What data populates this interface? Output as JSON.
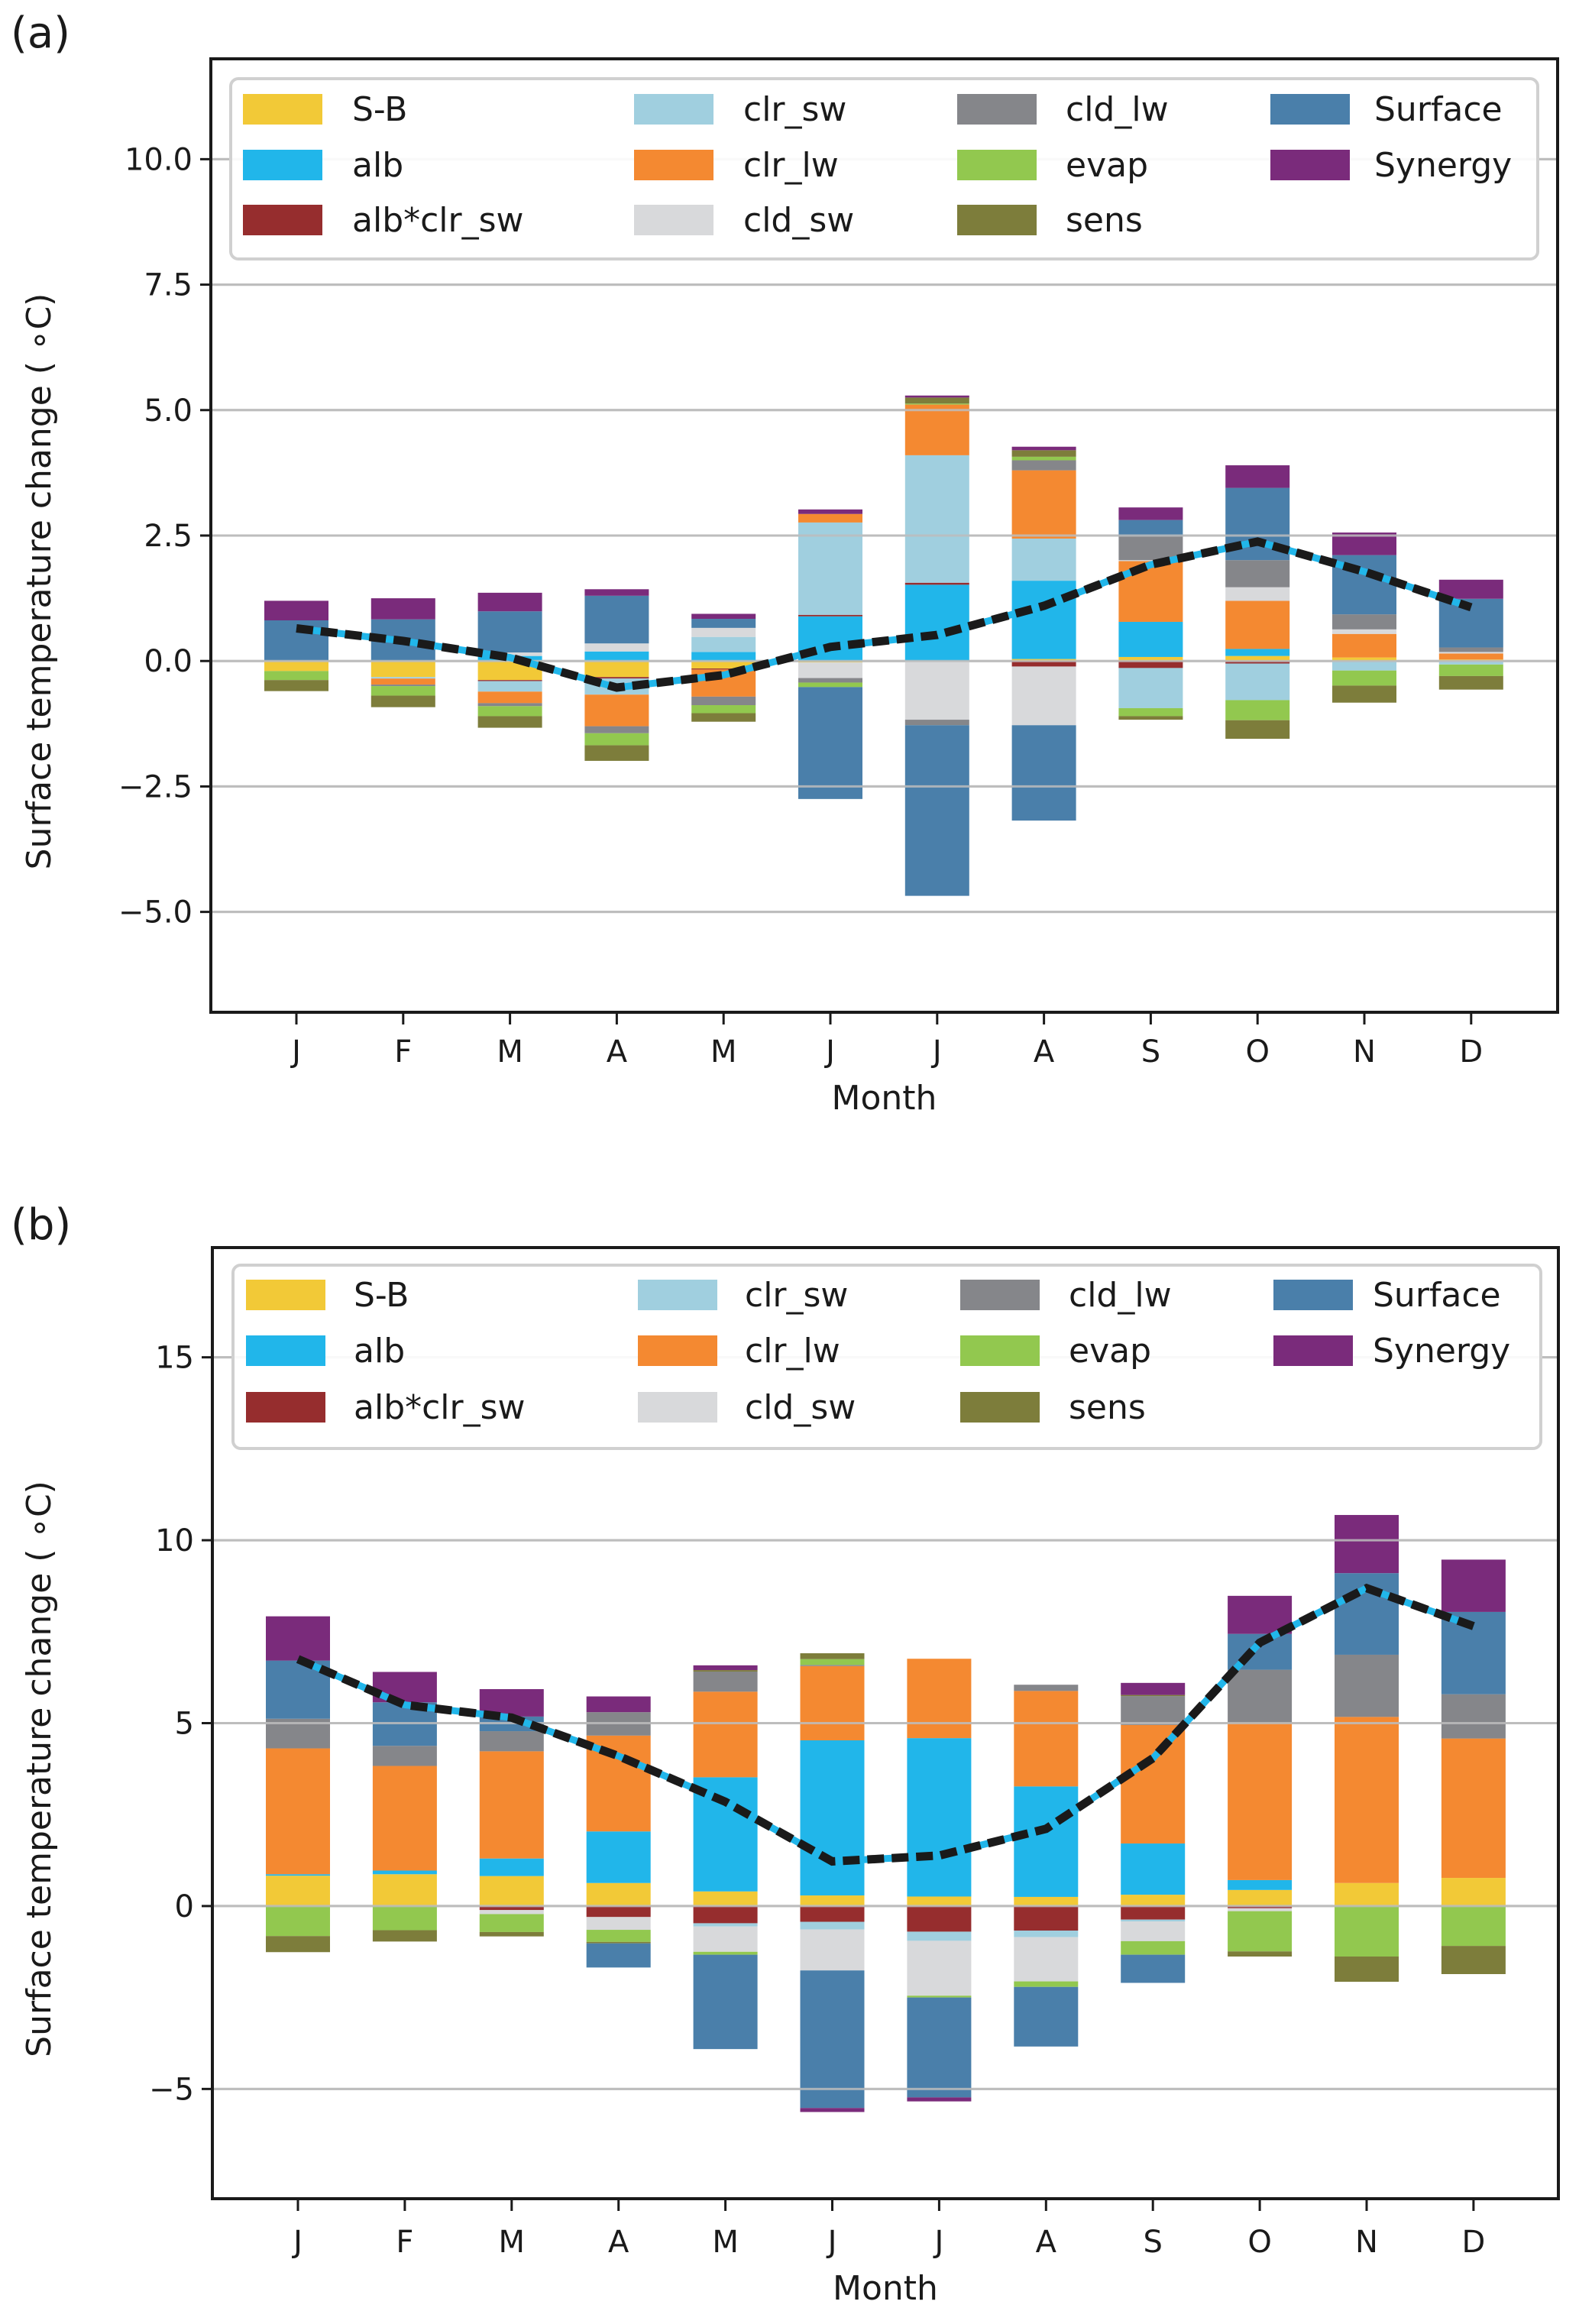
{
  "figure": {
    "panels_count": 2
  },
  "chart_data": [
    {
      "type": "bar",
      "stacked": true,
      "panel_label": "(a)",
      "title": "",
      "xlabel": "Month",
      "ylabel": "Surface temperature change ( ∘C)",
      "ylim": [
        -7.0,
        12.0
      ],
      "yticks": [
        -5.0,
        -2.5,
        0.0,
        2.5,
        5.0,
        7.5,
        10.0
      ],
      "ytick_labels": [
        "−5.0",
        "−2.5",
        "0.0",
        "2.5",
        "5.0",
        "7.5",
        "10.0"
      ],
      "grid": "horizontal",
      "legend_position": "top",
      "categories": [
        "J",
        "F",
        "M",
        "A",
        "M",
        "J",
        "J",
        "A",
        "S",
        "O",
        "N",
        "D"
      ],
      "series": [
        {
          "name": "S-B",
          "color": "#f2c937",
          "values": [
            -0.2,
            -0.32,
            -0.38,
            -0.32,
            -0.15,
            -0.03,
            0,
            0.04,
            0.08,
            0.1,
            0.07,
            0.03
          ]
        },
        {
          "name": "alb",
          "color": "#21b6ea",
          "values": [
            0,
            0,
            0.1,
            0.19,
            0.18,
            0.89,
            1.52,
            1.56,
            0.7,
            0.14,
            0,
            0
          ]
        },
        {
          "name": "alb*clr_sw",
          "color": "#962d2e",
          "values": [
            0,
            0,
            -0.02,
            -0.03,
            -0.02,
            0.03,
            0.04,
            -0.11,
            -0.14,
            -0.05,
            0,
            0
          ]
        },
        {
          "name": "clr_sw",
          "color": "#a0cfdf",
          "values": [
            0,
            -0.03,
            -0.21,
            -0.32,
            0.3,
            1.84,
            2.54,
            0.84,
            -0.8,
            -0.73,
            -0.19,
            -0.07
          ]
        },
        {
          "name": "clr_lw",
          "color": "#f48931",
          "values": [
            0,
            -0.12,
            -0.23,
            -0.63,
            -0.54,
            0.17,
            1.01,
            1.36,
            1.21,
            0.96,
            0.47,
            0.12
          ]
        },
        {
          "name": "cld_sw",
          "color": "#d8d9db",
          "values": [
            0,
            0,
            0.07,
            0.16,
            0.18,
            -0.31,
            -1.17,
            -1.17,
            0.02,
            0.27,
            0.09,
            0.03
          ]
        },
        {
          "name": "cld_lw",
          "color": "#85868a",
          "values": [
            0,
            -0.03,
            -0.06,
            -0.14,
            -0.17,
            -0.09,
            -0.11,
            0.2,
            0.48,
            0.54,
            0.3,
            0.09
          ]
        },
        {
          "name": "evap",
          "color": "#92c84f",
          "values": [
            -0.18,
            -0.19,
            -0.2,
            -0.24,
            -0.16,
            -0.09,
            0.02,
            0.07,
            -0.16,
            -0.4,
            -0.3,
            -0.23
          ]
        },
        {
          "name": "sens",
          "color": "#7d7d3b",
          "values": [
            -0.22,
            -0.23,
            -0.23,
            -0.31,
            -0.17,
            0,
            0.12,
            0.13,
            -0.07,
            -0.37,
            -0.34,
            -0.27
          ]
        },
        {
          "name": "Surface",
          "color": "#4a7faa",
          "values": [
            0.81,
            0.83,
            0.82,
            0.95,
            0.18,
            -2.23,
            -3.4,
            -1.9,
            0.32,
            1.44,
            1.18,
            0.97
          ]
        },
        {
          "name": "Synergy",
          "color": "#7a2b7b",
          "values": [
            0.39,
            0.42,
            0.37,
            0.13,
            0.1,
            0.09,
            0.04,
            0.07,
            0.25,
            0.45,
            0.45,
            0.38
          ]
        }
      ],
      "line": {
        "name": "Total",
        "style": "black dashes over cyan",
        "color_outer": "#1a1a1a",
        "color_inner": "#21b6ea",
        "values": [
          0.65,
          0.4,
          0.07,
          -0.53,
          -0.28,
          0.28,
          0.52,
          1.1,
          1.92,
          2.38,
          1.78,
          1.07
        ]
      }
    },
    {
      "type": "bar",
      "stacked": true,
      "panel_label": "(b)",
      "title": "",
      "xlabel": "Month",
      "ylabel": "Surface temperature change ( ∘C)",
      "ylim": [
        -8.0,
        18.0
      ],
      "yticks": [
        -5,
        0,
        5,
        10,
        15
      ],
      "ytick_labels": [
        "−5",
        "0",
        "5",
        "10",
        "15"
      ],
      "grid": "horizontal",
      "legend_position": "top",
      "categories": [
        "J",
        "F",
        "M",
        "A",
        "M",
        "J",
        "J",
        "A",
        "S",
        "O",
        "N",
        "D"
      ],
      "series": [
        {
          "name": "S-B",
          "color": "#f2c937",
          "values": [
            0.83,
            0.87,
            0.82,
            0.63,
            0.4,
            0.29,
            0.26,
            0.25,
            0.31,
            0.44,
            0.63,
            0.77
          ]
        },
        {
          "name": "alb",
          "color": "#21b6ea",
          "values": [
            0.04,
            0.1,
            0.48,
            1.41,
            3.12,
            4.24,
            4.33,
            3.02,
            1.4,
            0.27,
            0,
            0
          ]
        },
        {
          "name": "alb*clr_sw",
          "color": "#962d2e",
          "values": [
            0,
            0,
            -0.11,
            -0.3,
            -0.47,
            -0.43,
            -0.7,
            -0.67,
            -0.37,
            -0.06,
            0,
            0
          ]
        },
        {
          "name": "clr_sw",
          "color": "#a0cfdf",
          "values": [
            0,
            0,
            0,
            0,
            -0.09,
            -0.21,
            -0.25,
            -0.18,
            -0.05,
            0,
            0,
            0
          ]
        },
        {
          "name": "clr_lw",
          "color": "#f48931",
          "values": [
            3.44,
            2.86,
            2.93,
            2.62,
            2.34,
            2.03,
            2.17,
            2.61,
            3.24,
            4.29,
            4.54,
            3.81
          ]
        },
        {
          "name": "cld_sw",
          "color": "#d8d9db",
          "values": [
            0,
            0,
            -0.11,
            -0.35,
            -0.69,
            -1.12,
            -1.5,
            -1.21,
            -0.54,
            -0.08,
            0,
            0
          ]
        },
        {
          "name": "cld_lw",
          "color": "#85868a",
          "values": [
            0.81,
            0.55,
            0.55,
            0.64,
            0.55,
            0.03,
            0,
            0.17,
            0.79,
            1.46,
            1.7,
            1.21
          ]
        },
        {
          "name": "evap",
          "color": "#92c84f",
          "values": [
            -0.82,
            -0.66,
            -0.49,
            -0.33,
            -0.08,
            0.16,
            -0.05,
            -0.15,
            -0.37,
            -1.1,
            -1.38,
            -1.09
          ]
        },
        {
          "name": "sens",
          "color": "#7d7d3b",
          "values": [
            -0.44,
            -0.31,
            -0.12,
            -0.04,
            0.04,
            0.16,
            0,
            0,
            0.03,
            -0.14,
            -0.69,
            -0.77
          ]
        },
        {
          "name": "Surface",
          "color": "#4a7faa",
          "values": [
            1.59,
            1.19,
            0.4,
            -0.66,
            -2.58,
            -3.76,
            -2.73,
            -1.63,
            -0.77,
            0.98,
            2.23,
            2.25
          ]
        },
        {
          "name": "Synergy",
          "color": "#7a2b7b",
          "values": [
            1.21,
            0.83,
            0.75,
            0.43,
            0.13,
            -0.11,
            -0.11,
            0,
            0.33,
            1.04,
            1.59,
            1.43
          ]
        }
      ],
      "line": {
        "name": "Total",
        "style": "black dashes over cyan",
        "color_outer": "#1a1a1a",
        "color_inner": "#21b6ea",
        "values": [
          6.75,
          5.5,
          5.15,
          4.1,
          2.85,
          1.22,
          1.38,
          2.11,
          4.04,
          7.2,
          8.69,
          7.65
        ]
      }
    }
  ],
  "legend": {
    "entries": [
      "S-B",
      "alb",
      "alb*clr_sw",
      "clr_sw",
      "clr_lw",
      "cld_sw",
      "cld_lw",
      "evap",
      "sens",
      "Surface",
      "Synergy"
    ]
  },
  "colors": {
    "axis": "#1a1a1a",
    "grid": "#bdbdbd",
    "legend_border": "#d0d0d0"
  }
}
